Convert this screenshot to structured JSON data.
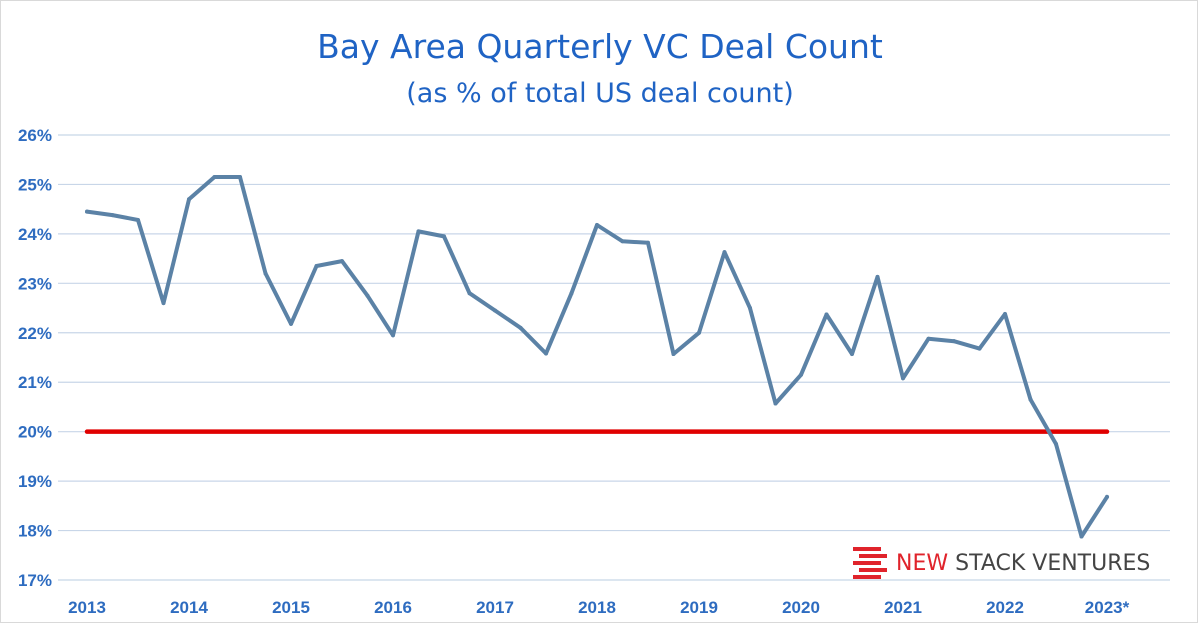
{
  "chart_data": {
    "type": "line",
    "title": "Bay Area Quarterly VC Deal Count",
    "subtitle": "(as % of total US deal count)",
    "xlabel": "",
    "ylabel": "",
    "xlim": [
      2013,
      2023.5
    ],
    "ylim": [
      17,
      26
    ],
    "y_ticks": [
      17,
      18,
      19,
      20,
      21,
      22,
      23,
      24,
      25,
      26
    ],
    "y_tick_labels": [
      "17%",
      "18%",
      "19%",
      "20%",
      "21%",
      "22%",
      "23%",
      "24%",
      "25%",
      "26%"
    ],
    "x_ticks": [
      2013,
      2014,
      2015,
      2016,
      2017,
      2018,
      2019,
      2020,
      2021,
      2022,
      2023
    ],
    "x_tick_labels": [
      "2013",
      "2014",
      "2015",
      "2016",
      "2017",
      "2018",
      "2019",
      "2020",
      "2021",
      "2022",
      "2023*"
    ],
    "grid": true,
    "series": [
      {
        "name": "Bay Area share of US deal count",
        "color": "#5b82a6",
        "values": [
          24.45,
          24.38,
          24.28,
          22.6,
          24.7,
          25.15,
          25.15,
          23.2,
          22.18,
          23.35,
          23.45,
          22.75,
          21.95,
          24.05,
          23.95,
          22.8,
          22.45,
          22.1,
          21.58,
          22.8,
          24.18,
          23.85,
          23.82,
          21.57,
          22.0,
          23.63,
          22.5,
          20.57,
          21.15,
          22.37,
          21.57,
          23.13,
          21.08,
          21.88,
          21.83,
          21.68,
          22.38,
          20.65,
          19.75,
          17.88,
          18.68
        ]
      },
      {
        "name": "20% reference line",
        "color": "#e00000",
        "values": [
          20,
          20
        ]
      }
    ],
    "x_start": 2013,
    "x_step": 0.25,
    "reference_x": [
      2013,
      2023
    ]
  },
  "brand": {
    "name_part1": "NEW",
    "name_part2": "STACK VENTURES",
    "color1": "#e0232b",
    "color2": "#444444",
    "logo_icon": "stacked-bars-logo-icon"
  }
}
